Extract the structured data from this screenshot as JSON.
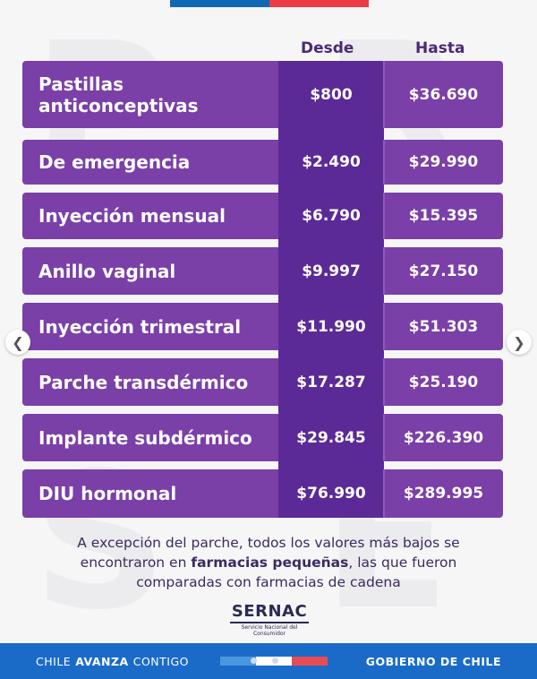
{
  "watermark": [
    "P",
    "R",
    "S",
    "E"
  ],
  "headers": {
    "desde": "Desde",
    "hasta": "Hasta"
  },
  "rows": [
    {
      "name": "Pastillas anticonceptivas",
      "desde": "$800",
      "hasta": "$36.690"
    },
    {
      "name": "De emergencia",
      "desde": "$2.490",
      "hasta": "$29.990"
    },
    {
      "name": "Inyección mensual",
      "desde": "$6.790",
      "hasta": "$15.395"
    },
    {
      "name": "Anillo vaginal",
      "desde": "$9.997",
      "hasta": "$27.150"
    },
    {
      "name": "Inyección trimestral",
      "desde": "$11.990",
      "hasta": "$51.303"
    },
    {
      "name": "Parche transdérmico",
      "desde": "$17.287",
      "hasta": "$25.190"
    },
    {
      "name": "Implante subdérmico",
      "desde": "$29.845",
      "hasta": "$226.390"
    },
    {
      "name": "DIU hormonal",
      "desde": "$76.990",
      "hasta": "$289.995"
    }
  ],
  "note": {
    "before": "A excepción del parche, todos los valores más bajos se encontraron en ",
    "bold": "farmacias pequeñas",
    "after": ", las que fueron comparadas con farmacias de cadena"
  },
  "sernac": {
    "logo": "SERNAC",
    "subtitle": "Servicio Nacional del Consumidor"
  },
  "footer": {
    "left_1": "CHILE",
    "left_2": "AVANZA",
    "left_3": "CONTIGO",
    "right": "GOBIERNO DE CHILE"
  },
  "carousel": {
    "dots": 3,
    "active": 1,
    "prev_icon": "chevron-left-icon",
    "next_icon": "chevron-right-icon"
  },
  "colors": {
    "row": "#7b3fa8",
    "desde_col": "#5b2a96",
    "header_text": "#4a2a78",
    "footer": "#1a6bc8"
  }
}
